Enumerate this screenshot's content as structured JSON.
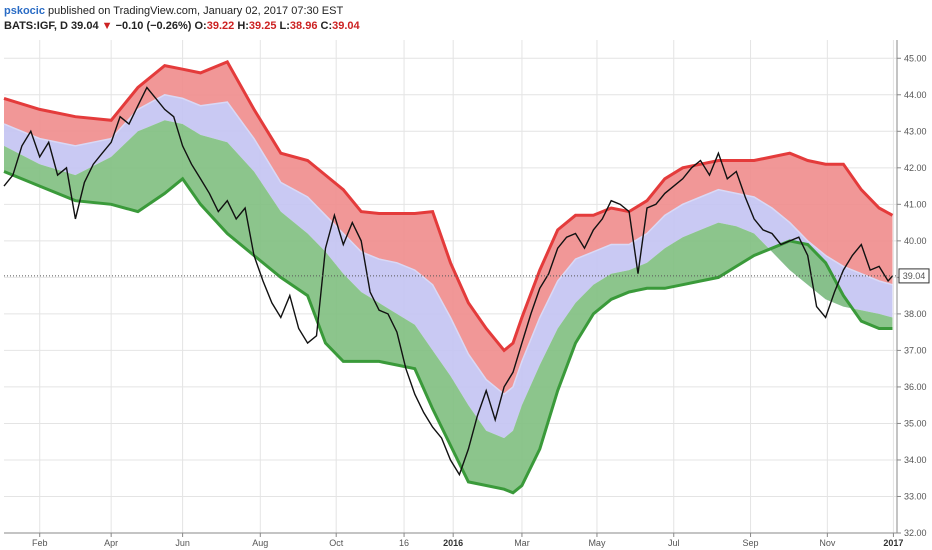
{
  "header": {
    "author": "pskocic",
    "published_text": "published on TradingView.com, January 02, 2017 07:30 EST",
    "symbol": "BATS:IGF, D",
    "last": "39.04",
    "change_arrow": "▼",
    "change": "−0.10 (−0.26%)",
    "o_label": "O:",
    "o_value": "39.22",
    "h_label": "H:",
    "h_value": "39.25",
    "l_label": "L:",
    "l_value": "38.96",
    "c_label": "C:",
    "c_value": "39.04"
  },
  "price_badge": "39.04",
  "colors": {
    "upper_fill": "#f08c8c",
    "upper_line": "#e43b3b",
    "mid_fill": "#c3c3f2",
    "lower_fill": "#7fbf7f",
    "lower_line": "#3a9a3a",
    "price_line": "#111111",
    "negative": "#cc2222",
    "author": "#2a6cc5"
  },
  "chart_data": {
    "type": "line",
    "title": "",
    "y_ticks": [
      "45.00",
      "44.00",
      "43.00",
      "42.00",
      "41.00",
      "40.00",
      "39.00",
      "38.00",
      "37.00",
      "36.00",
      "35.00",
      "34.00",
      "33.00",
      "32.00"
    ],
    "ylim": [
      32,
      45.5
    ],
    "xlim": [
      0,
      100
    ],
    "x_ticks": [
      {
        "label": "Feb",
        "pos": 4.0,
        "bold": false
      },
      {
        "label": "Apr",
        "pos": 12.0,
        "bold": false
      },
      {
        "label": "Jun",
        "pos": 20.0,
        "bold": false
      },
      {
        "label": "Aug",
        "pos": 28.7,
        "bold": false
      },
      {
        "label": "Oct",
        "pos": 37.2,
        "bold": false
      },
      {
        "label": "16",
        "pos": 44.8,
        "bold": false
      },
      {
        "label": "2016",
        "pos": 50.3,
        "bold": true
      },
      {
        "label": "Mar",
        "pos": 58.0,
        "bold": false
      },
      {
        "label": "May",
        "pos": 66.4,
        "bold": false
      },
      {
        "label": "Jul",
        "pos": 75.0,
        "bold": false
      },
      {
        "label": "Sep",
        "pos": 83.6,
        "bold": false
      },
      {
        "label": "Nov",
        "pos": 92.2,
        "bold": false
      },
      {
        "label": "2017",
        "pos": 99.6,
        "bold": true
      }
    ],
    "series": [
      {
        "x": [
          0,
          4,
          8,
          12,
          15,
          18,
          20,
          22,
          25,
          28,
          31,
          34,
          36,
          38,
          40,
          42,
          44,
          46,
          48,
          50,
          52,
          54,
          56,
          57,
          58,
          60,
          62,
          64,
          66,
          68,
          70,
          72,
          74,
          76,
          78,
          80,
          82,
          84,
          86,
          88,
          90,
          92,
          94,
          96,
          98,
          99.5
        ],
        "values": [
          43.9,
          43.6,
          43.4,
          43.3,
          44.2,
          44.8,
          44.7,
          44.6,
          44.9,
          43.6,
          42.4,
          42.2,
          41.8,
          41.4,
          40.8,
          40.75,
          40.75,
          40.75,
          40.8,
          39.4,
          38.3,
          37.6,
          37.0,
          37.2,
          37.9,
          39.2,
          40.3,
          40.7,
          40.7,
          40.9,
          40.8,
          41.1,
          41.7,
          42.0,
          42.1,
          42.2,
          42.2,
          42.2,
          42.3,
          42.4,
          42.2,
          42.1,
          42.1,
          41.4,
          40.9,
          40.7
        ]
      },
      {
        "x": [
          0,
          4,
          8,
          12,
          15,
          18,
          20,
          22,
          25,
          28,
          31,
          34,
          36,
          38,
          40,
          42,
          44,
          46,
          48,
          50,
          52,
          54,
          56,
          57,
          58,
          60,
          62,
          64,
          66,
          68,
          70,
          72,
          74,
          76,
          78,
          80,
          82,
          84,
          86,
          88,
          90,
          92,
          94,
          96,
          98,
          99.5
        ],
        "values": [
          43.2,
          42.8,
          42.6,
          42.8,
          43.6,
          44.0,
          43.9,
          43.7,
          43.8,
          42.8,
          41.6,
          41.2,
          40.7,
          40.2,
          39.7,
          39.5,
          39.4,
          39.2,
          38.8,
          37.9,
          36.9,
          36.2,
          35.8,
          36.0,
          36.7,
          37.9,
          38.9,
          39.5,
          39.7,
          39.9,
          39.9,
          40.2,
          40.7,
          41.0,
          41.2,
          41.4,
          41.3,
          41.2,
          40.9,
          40.5,
          40.0,
          39.6,
          39.3,
          39.1,
          38.9,
          38.8
        ]
      },
      {
        "x": [
          0,
          4,
          8,
          12,
          15,
          18,
          20,
          22,
          25,
          28,
          31,
          34,
          36,
          38,
          40,
          42,
          44,
          46,
          48,
          50,
          52,
          54,
          56,
          57,
          58,
          60,
          62,
          64,
          66,
          68,
          70,
          72,
          74,
          76,
          78,
          80,
          82,
          84,
          86,
          88,
          90,
          92,
          94,
          96,
          98,
          99.5
        ],
        "values": [
          42.6,
          42.1,
          41.8,
          42.3,
          43.0,
          43.3,
          43.2,
          42.9,
          42.7,
          41.9,
          40.8,
          40.2,
          39.7,
          39.1,
          38.6,
          38.3,
          38.0,
          37.7,
          37.0,
          36.3,
          35.5,
          34.8,
          34.6,
          34.8,
          35.5,
          36.6,
          37.6,
          38.3,
          38.8,
          39.1,
          39.2,
          39.4,
          39.8,
          40.1,
          40.3,
          40.5,
          40.4,
          40.2,
          39.7,
          39.2,
          38.8,
          38.4,
          38.2,
          38.1,
          38.0,
          37.9
        ]
      },
      {
        "x": [
          0,
          4,
          8,
          12,
          15,
          18,
          20,
          22,
          25,
          28,
          31,
          34,
          36,
          38,
          40,
          42,
          44,
          46,
          48,
          50,
          52,
          54,
          56,
          57,
          58,
          60,
          62,
          64,
          66,
          68,
          70,
          72,
          74,
          76,
          78,
          80,
          82,
          84,
          86,
          88,
          90,
          92,
          94,
          96,
          98,
          99.5
        ],
        "values": [
          41.9,
          41.5,
          41.1,
          41.0,
          40.8,
          41.3,
          41.7,
          41.0,
          40.2,
          39.6,
          39.0,
          38.5,
          37.2,
          36.7,
          36.7,
          36.7,
          36.6,
          36.5,
          35.4,
          34.4,
          33.4,
          33.3,
          33.2,
          33.1,
          33.3,
          34.3,
          35.9,
          37.2,
          38.0,
          38.4,
          38.6,
          38.7,
          38.7,
          38.8,
          38.9,
          39.0,
          39.3,
          39.6,
          39.8,
          40.0,
          39.9,
          39.4,
          38.5,
          37.8,
          37.6,
          37.6
        ]
      },
      {
        "x": [
          0,
          1,
          2,
          3,
          4,
          5,
          6,
          7,
          8,
          9,
          10,
          11,
          12,
          13,
          14,
          15,
          16,
          17,
          18,
          19,
          20,
          21,
          22,
          23,
          24,
          25,
          26,
          27,
          28,
          29,
          30,
          31,
          32,
          33,
          34,
          35,
          36,
          37,
          38,
          39,
          40,
          41,
          42,
          43,
          44,
          45,
          46,
          47,
          48,
          49,
          50,
          51,
          52,
          53,
          54,
          55,
          56,
          57,
          58,
          59,
          60,
          61,
          62,
          63,
          64,
          65,
          66,
          67,
          68,
          69,
          70,
          71,
          72,
          73,
          74,
          75,
          76,
          77,
          78,
          79,
          80,
          81,
          82,
          83,
          84,
          85,
          86,
          87,
          88,
          89,
          90,
          91,
          92,
          93,
          94,
          95,
          96,
          97,
          98,
          99,
          99.5
        ],
        "values": [
          41.5,
          41.8,
          42.6,
          43.0,
          42.3,
          42.7,
          41.8,
          42.0,
          40.6,
          41.6,
          42.1,
          42.4,
          42.7,
          43.4,
          43.2,
          43.7,
          44.2,
          43.9,
          43.6,
          43.4,
          42.6,
          42.1,
          41.7,
          41.3,
          40.8,
          41.1,
          40.6,
          40.9,
          39.6,
          38.9,
          38.3,
          37.9,
          38.5,
          37.6,
          37.2,
          37.4,
          39.8,
          40.7,
          39.9,
          40.5,
          40.0,
          38.6,
          38.1,
          38.0,
          37.5,
          36.5,
          35.8,
          35.3,
          34.9,
          34.6,
          34.0,
          33.6,
          34.3,
          35.2,
          35.9,
          35.1,
          36.0,
          36.4,
          37.2,
          38.0,
          38.7,
          39.1,
          39.8,
          40.1,
          40.2,
          39.8,
          40.3,
          40.6,
          41.1,
          41.0,
          40.8,
          39.1,
          40.9,
          41.0,
          41.3,
          41.5,
          41.7,
          42.0,
          42.2,
          41.8,
          42.4,
          41.7,
          41.9,
          41.2,
          40.6,
          40.3,
          40.2,
          39.9,
          40.0,
          40.1,
          39.6,
          38.2,
          37.9,
          38.6,
          39.2,
          39.6,
          39.9,
          39.2,
          39.3,
          38.9,
          39.04
        ]
      }
    ]
  }
}
